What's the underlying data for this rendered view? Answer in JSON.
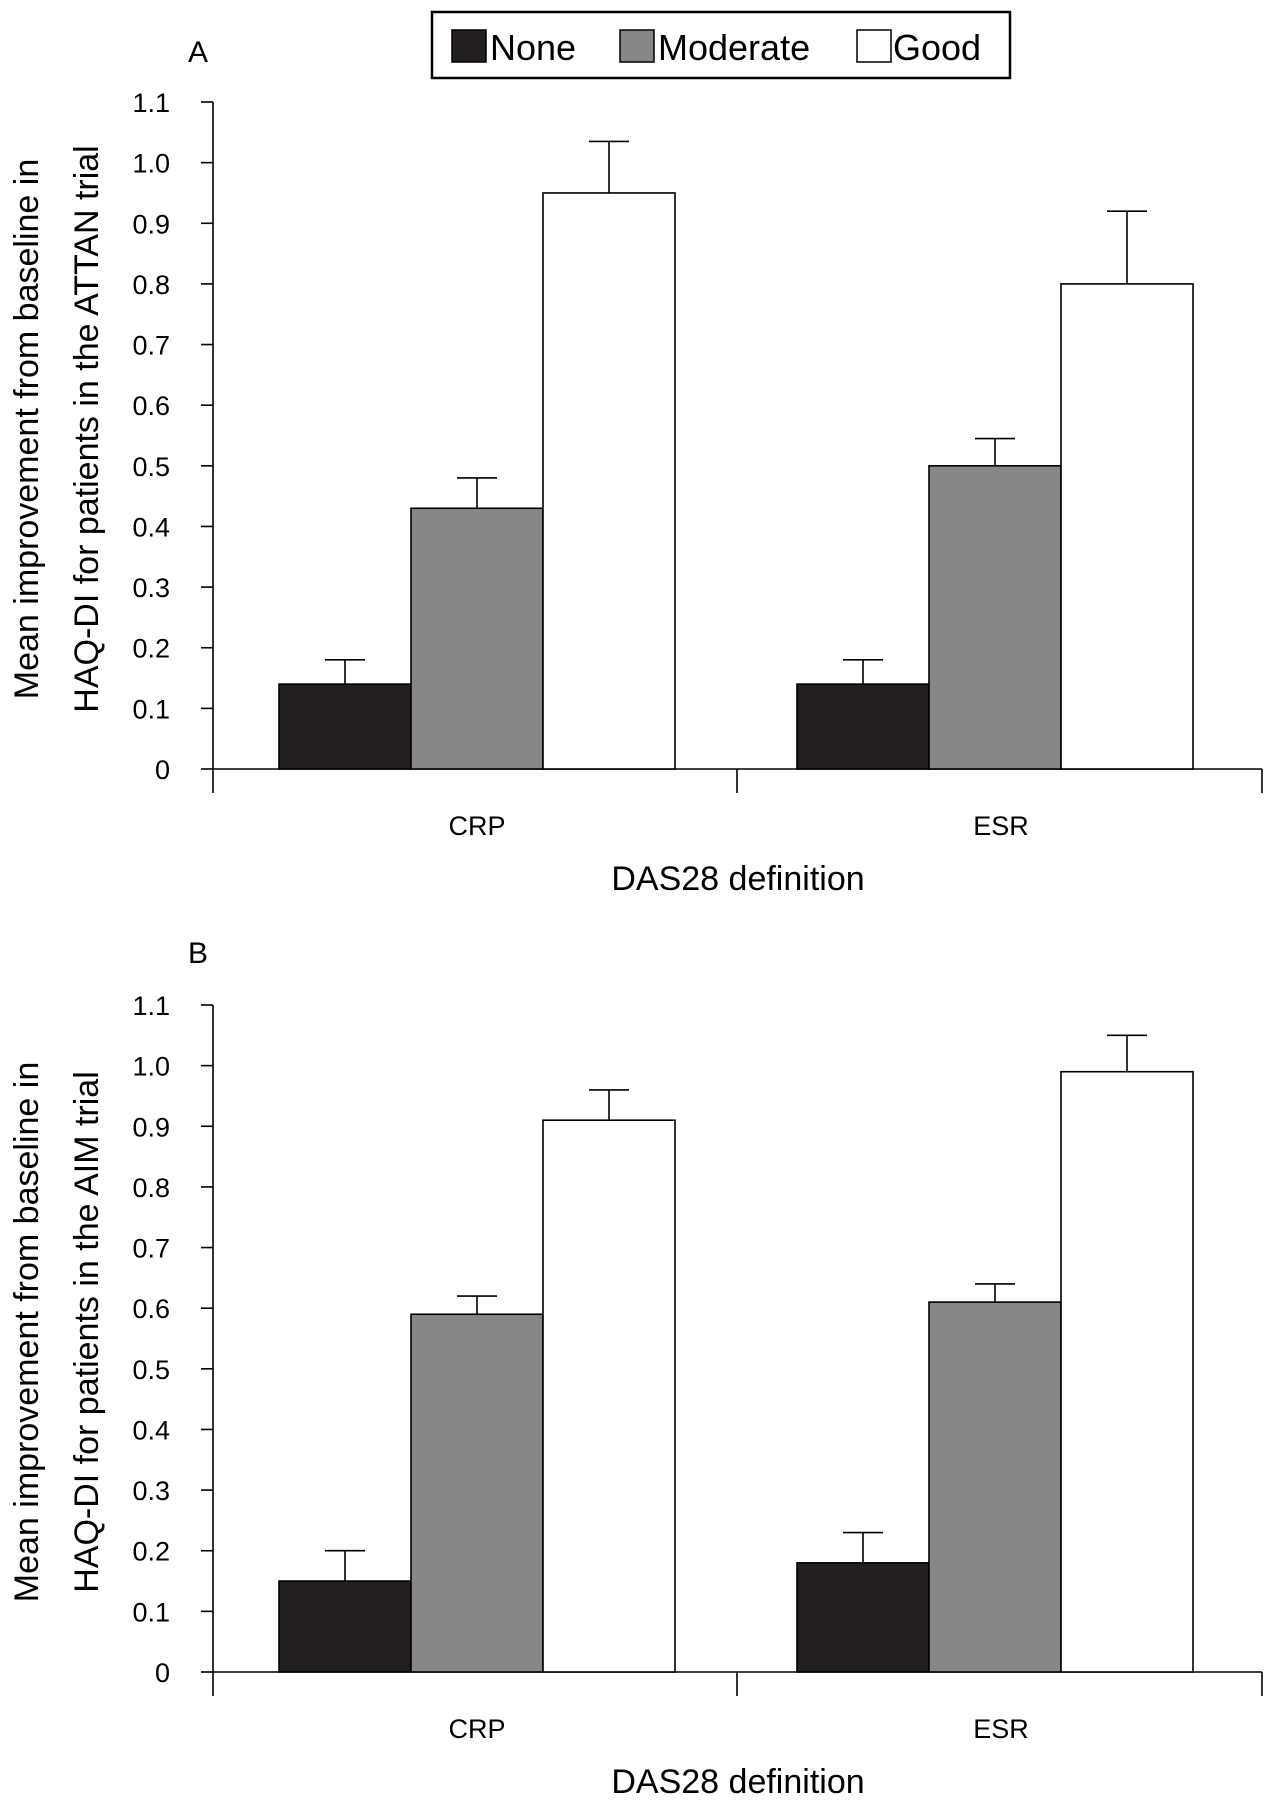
{
  "legend": {
    "items": [
      {
        "label": "None",
        "color": "#231f20"
      },
      {
        "label": "Moderate",
        "color": "#878787"
      },
      {
        "label": "Good",
        "color": "#ffffff"
      }
    ]
  },
  "chart_data": [
    {
      "type": "bar",
      "panel": "A",
      "categories": [
        "CRP",
        "ESR"
      ],
      "series": [
        {
          "name": "None",
          "values": [
            0.14,
            0.14
          ],
          "errors": [
            0.04,
            0.04
          ]
        },
        {
          "name": "Moderate",
          "values": [
            0.43,
            0.5
          ],
          "errors": [
            0.05,
            0.045
          ]
        },
        {
          "name": "Good",
          "values": [
            0.95,
            0.8
          ],
          "errors": [
            0.085,
            0.12
          ]
        }
      ],
      "ylabel_lines": [
        "Mean improvement from baseline in",
        "HAQ-DI for patients in the ATTAN trial"
      ],
      "xlabel": "DAS28 definition",
      "ylim": [
        0,
        1.1
      ],
      "yticks": [
        "0",
        "0.1",
        "0.2",
        "0.3",
        "0.4",
        "0.5",
        "0.6",
        "0.7",
        "0.8",
        "0.9",
        "1.0",
        "1.1"
      ],
      "grid": false,
      "legend_position": "top"
    },
    {
      "type": "bar",
      "panel": "B",
      "categories": [
        "CRP",
        "ESR"
      ],
      "series": [
        {
          "name": "None",
          "values": [
            0.15,
            0.18
          ],
          "errors": [
            0.05,
            0.05
          ]
        },
        {
          "name": "Moderate",
          "values": [
            0.59,
            0.61
          ],
          "errors": [
            0.03,
            0.03
          ]
        },
        {
          "name": "Good",
          "values": [
            0.91,
            0.99
          ],
          "errors": [
            0.05,
            0.06
          ]
        }
      ],
      "ylabel_lines": [
        "Mean improvement from baseline in",
        "HAQ-DI for patients in the AIM trial"
      ],
      "xlabel": "DAS28 definition",
      "ylim": [
        0,
        1.1
      ],
      "yticks": [
        "0",
        "0.1",
        "0.2",
        "0.3",
        "0.4",
        "0.5",
        "0.6",
        "0.7",
        "0.8",
        "0.9",
        "1.0",
        "1.1"
      ],
      "grid": false,
      "legend_position": "none"
    }
  ]
}
